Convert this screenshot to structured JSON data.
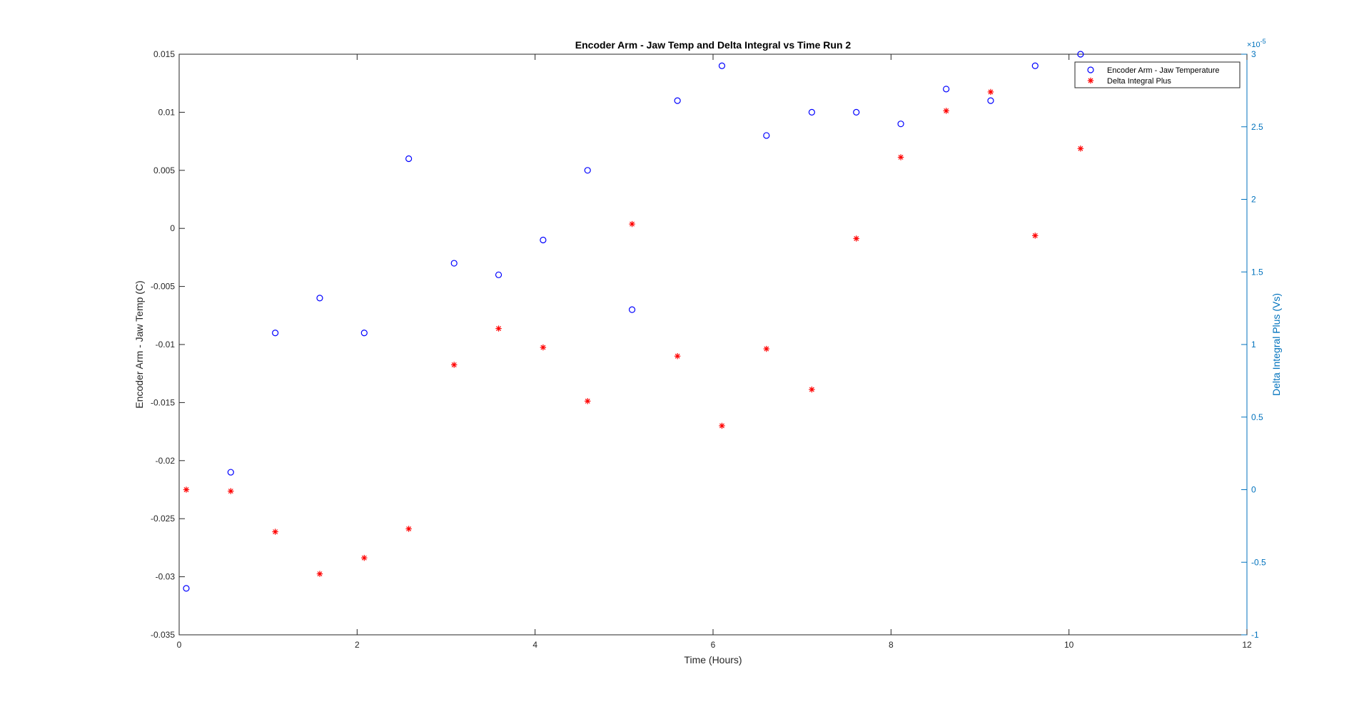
{
  "chart_data": {
    "type": "scatter",
    "title": "Encoder Arm - Jaw Temp and Delta Integral vs Time Run 2",
    "xlabel": "Time (Hours)",
    "ylabel_left": "Encoder Arm - Jaw Temp (C)",
    "ylabel_right": "Delta Integral Plus (Vs)",
    "right_exponent": "×10",
    "right_exponent_power": "-5",
    "xlim": [
      0,
      12
    ],
    "ylim_left": [
      -0.035,
      0.015
    ],
    "ylim_right": [
      -1,
      3
    ],
    "xticks": [
      "0",
      "2",
      "4",
      "6",
      "8",
      "10",
      "12"
    ],
    "yticks_left": [
      "-0.035",
      "-0.03",
      "-0.025",
      "-0.02",
      "-0.015",
      "-0.01",
      "-0.005",
      "0",
      "0.005",
      "0.01",
      "0.015"
    ],
    "yticks_right": [
      "-1",
      "-0.5",
      "0",
      "0.5",
      "1",
      "1.5",
      "2",
      "2.5",
      "3"
    ],
    "legend_position": "top-right",
    "colors": {
      "left_series": "#0000ff",
      "right_series": "#ff0000",
      "right_axis": "#0072bd",
      "axis": "#262626"
    },
    "series": [
      {
        "name": "Encoder Arm - Jaw Temperature",
        "axis": "left",
        "marker": "circle",
        "x": [
          0.08,
          0.58,
          1.08,
          1.58,
          2.08,
          2.58,
          3.09,
          3.59,
          4.09,
          4.59,
          5.09,
          5.6,
          6.1,
          6.6,
          7.11,
          7.61,
          8.11,
          8.62,
          9.12,
          9.62,
          10.13
        ],
        "y": [
          -0.031,
          -0.021,
          -0.009,
          -0.006,
          -0.009,
          0.006,
          -0.003,
          -0.004,
          -0.001,
          0.005,
          -0.007,
          0.011,
          0.014,
          0.008,
          0.01,
          0.01,
          0.009,
          0.012,
          0.011,
          0.014,
          0.015
        ]
      },
      {
        "name": "Delta Integral Plus",
        "axis": "right",
        "marker": "asterisk",
        "x": [
          0.08,
          0.58,
          1.08,
          1.58,
          2.08,
          2.58,
          3.09,
          3.59,
          4.09,
          4.59,
          5.09,
          5.6,
          6.1,
          6.6,
          7.11,
          7.61,
          8.11,
          8.62,
          9.12,
          9.62,
          10.13
        ],
        "y": [
          0.0,
          -0.01,
          -0.29,
          -0.58,
          -0.47,
          -0.27,
          0.86,
          1.11,
          0.98,
          0.61,
          1.83,
          0.92,
          0.44,
          0.97,
          0.69,
          1.73,
          2.29,
          2.61,
          2.74,
          1.75,
          2.35
        ]
      }
    ]
  }
}
